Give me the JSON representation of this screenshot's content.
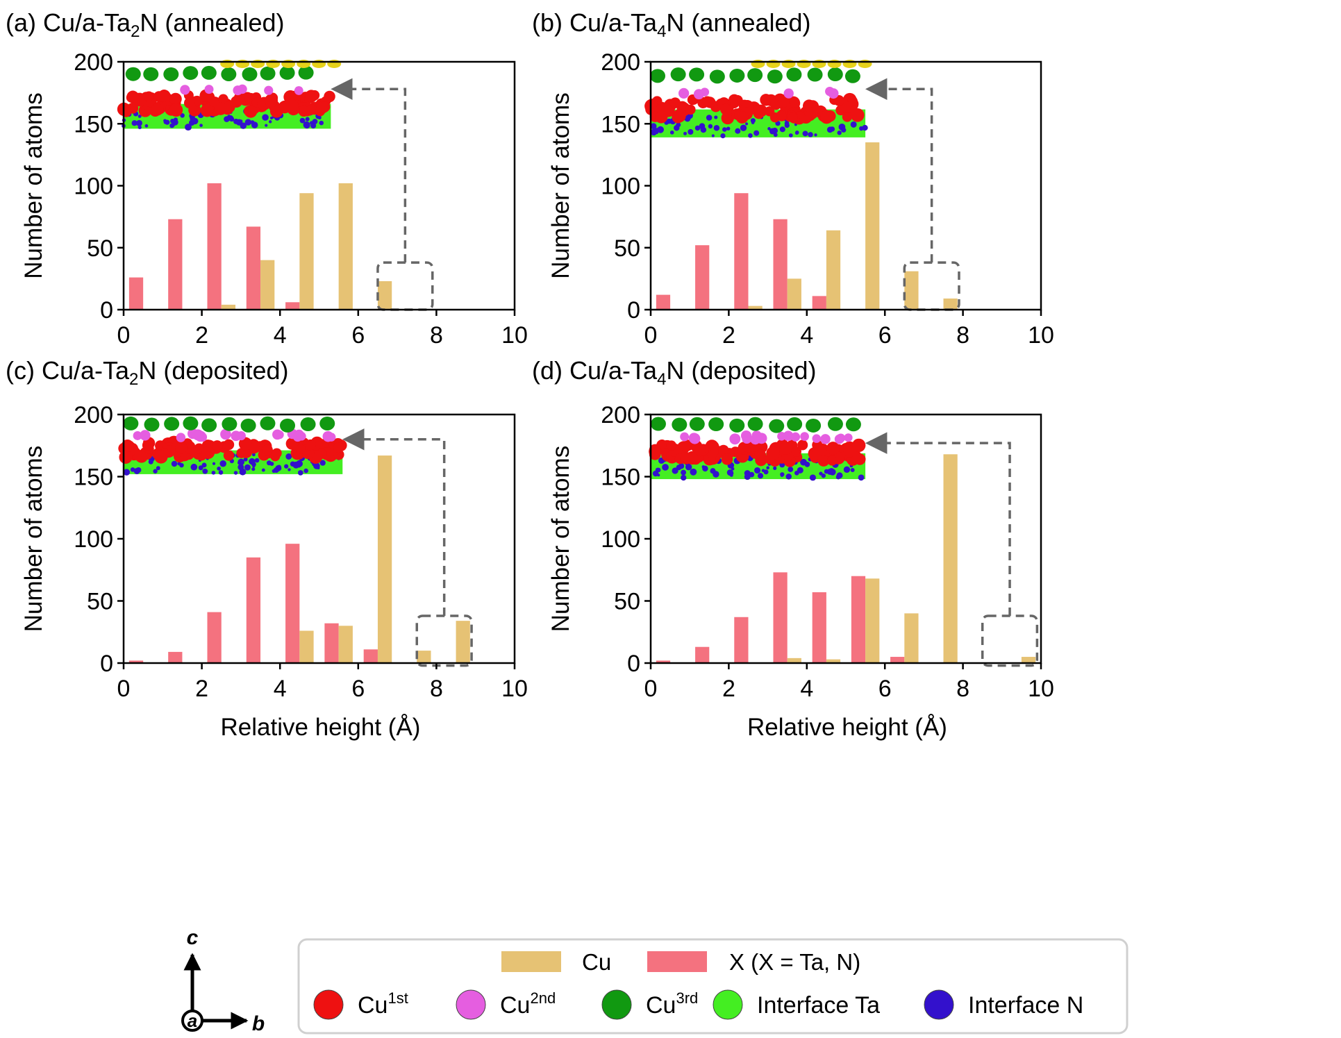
{
  "colors": {
    "cu": "#e6c274",
    "x": "#f4727f",
    "cu1st": "#ee1111",
    "cu2nd": "#e55ee0",
    "cu3rd": "#119911",
    "interface_ta": "#44ee22",
    "interface_n": "#3311cc",
    "cu_top": "#e6d21a",
    "bracket": "#666666"
  },
  "legend": {
    "cu_label": "Cu",
    "x_label": "X (X = Ta, N)",
    "atoms": [
      {
        "base": "Cu",
        "sup": "1st",
        "color_key": "cu1st"
      },
      {
        "base": "Cu",
        "sup": "2nd",
        "color_key": "cu2nd"
      },
      {
        "base": "Cu",
        "sup": "3rd",
        "color_key": "cu3rd"
      },
      {
        "base": "Interface Ta",
        "sup": "",
        "color_key": "interface_ta"
      },
      {
        "base": "Interface N",
        "sup": "",
        "color_key": "interface_n"
      }
    ]
  },
  "axes_triad": {
    "up": "c",
    "right": "b",
    "origin": "a"
  },
  "chart_data": [
    {
      "panel": "a",
      "type": "bar",
      "title_prefix": "(a) Cu/a-Ta",
      "title_sub": "2",
      "title_suffix": "N (annealed)",
      "xlabel": "",
      "ylabel": "Number of atoms",
      "xlim": [
        0,
        10
      ],
      "ylim": [
        0,
        200
      ],
      "xticks": [
        0,
        2,
        4,
        6,
        8,
        10
      ],
      "yticks": [
        0,
        50,
        100,
        150,
        200
      ],
      "bin_centers": [
        0.5,
        1.5,
        2.5,
        3.5,
        4.5,
        5.5,
        6.5,
        7.5,
        8.5,
        9.5
      ],
      "series": [
        {
          "name": "X (X = Ta, N)",
          "values": [
            26,
            73,
            102,
            67,
            6,
            0,
            0,
            0,
            0,
            0
          ]
        },
        {
          "name": "Cu",
          "values": [
            0,
            0,
            4,
            40,
            94,
            102,
            23,
            0,
            0,
            0
          ]
        }
      ],
      "zoom_box": {
        "x": [
          6.5,
          7.9
        ],
        "y": [
          0,
          38
        ]
      },
      "arrow_to": {
        "x": 5.3,
        "y": 178
      },
      "arrow_corner_x": 7.2,
      "inset": {
        "x": [
          0,
          5.3
        ],
        "y": [
          146,
          200
        ],
        "layers": [
          "cu_top",
          "cu3rd",
          "cu2nd",
          "cu1st",
          "interface_ta",
          "interface_n"
        ]
      }
    },
    {
      "panel": "b",
      "type": "bar",
      "title_prefix": "(b) Cu/a-Ta",
      "title_sub": "4",
      "title_suffix": "N (annealed)",
      "xlabel": "",
      "ylabel": "Number of atoms",
      "xlim": [
        0,
        10
      ],
      "ylim": [
        0,
        200
      ],
      "xticks": [
        0,
        2,
        4,
        6,
        8,
        10
      ],
      "yticks": [
        0,
        50,
        100,
        150,
        200
      ],
      "bin_centers": [
        0.5,
        1.5,
        2.5,
        3.5,
        4.5,
        5.5,
        6.5,
        7.5,
        8.5,
        9.5
      ],
      "series": [
        {
          "name": "X (X = Ta, N)",
          "values": [
            12,
            52,
            94,
            73,
            11,
            0,
            0,
            0,
            0,
            0
          ]
        },
        {
          "name": "Cu",
          "values": [
            0,
            0,
            3,
            25,
            64,
            135,
            31,
            9,
            0,
            0
          ]
        }
      ],
      "zoom_box": {
        "x": [
          6.5,
          7.9
        ],
        "y": [
          0,
          38
        ]
      },
      "arrow_to": {
        "x": 5.5,
        "y": 178
      },
      "arrow_corner_x": 7.2,
      "inset": {
        "x": [
          0,
          5.5
        ],
        "y": [
          139,
          200
        ],
        "layers": [
          "cu_top",
          "cu3rd",
          "cu2nd",
          "cu1st",
          "interface_ta",
          "interface_n"
        ]
      }
    },
    {
      "panel": "c",
      "type": "bar",
      "title_prefix": "(c) Cu/a-Ta",
      "title_sub": "2",
      "title_suffix": "N (deposited)",
      "xlabel": "Relative height (Å)",
      "ylabel": "Number of atoms",
      "xlim": [
        0,
        10
      ],
      "ylim": [
        0,
        200
      ],
      "xticks": [
        0,
        2,
        4,
        6,
        8,
        10
      ],
      "yticks": [
        0,
        50,
        100,
        150,
        200
      ],
      "bin_centers": [
        0.5,
        1.5,
        2.5,
        3.5,
        4.5,
        5.5,
        6.5,
        7.5,
        8.5,
        9.5
      ],
      "series": [
        {
          "name": "X (X = Ta, N)",
          "values": [
            2,
            9,
            41,
            85,
            96,
            32,
            11,
            0,
            0,
            0
          ]
        },
        {
          "name": "Cu",
          "values": [
            0,
            0,
            0,
            0,
            26,
            30,
            167,
            10,
            34,
            0
          ]
        }
      ],
      "zoom_box": {
        "x": [
          7.5,
          8.9
        ],
        "y": [
          -2,
          38
        ]
      },
      "arrow_to": {
        "x": 5.6,
        "y": 180
      },
      "arrow_corner_x": 8.2,
      "inset": {
        "x": [
          0,
          5.6
        ],
        "y": [
          152,
          200
        ],
        "layers": [
          "cu3rd",
          "cu2nd",
          "cu1st",
          "interface_ta",
          "interface_n"
        ]
      }
    },
    {
      "panel": "d",
      "type": "bar",
      "title_prefix": "(d) Cu/a-Ta",
      "title_sub": "4",
      "title_suffix": "N (deposited)",
      "xlabel": "Relative height (Å)",
      "ylabel": "Number of atoms",
      "xlim": [
        0,
        10
      ],
      "ylim": [
        0,
        200
      ],
      "xticks": [
        0,
        2,
        4,
        6,
        8,
        10
      ],
      "yticks": [
        0,
        50,
        100,
        150,
        200
      ],
      "bin_centers": [
        0.5,
        1.5,
        2.5,
        3.5,
        4.5,
        5.5,
        6.5,
        7.5,
        8.5,
        9.5
      ],
      "series": [
        {
          "name": "X (X = Ta, N)",
          "values": [
            2,
            13,
            37,
            73,
            57,
            70,
            5,
            0,
            0,
            0
          ]
        },
        {
          "name": "Cu",
          "values": [
            0,
            0,
            0,
            4,
            3,
            68,
            40,
            168,
            0,
            5
          ]
        }
      ],
      "zoom_box": {
        "x": [
          8.5,
          9.9
        ],
        "y": [
          -2,
          38
        ]
      },
      "arrow_to": {
        "x": 5.5,
        "y": 177
      },
      "arrow_corner_x": 9.2,
      "inset": {
        "x": [
          0,
          5.5
        ],
        "y": [
          148,
          200
        ],
        "layers": [
          "cu3rd",
          "cu2nd",
          "cu1st",
          "interface_ta",
          "interface_n"
        ]
      }
    }
  ]
}
